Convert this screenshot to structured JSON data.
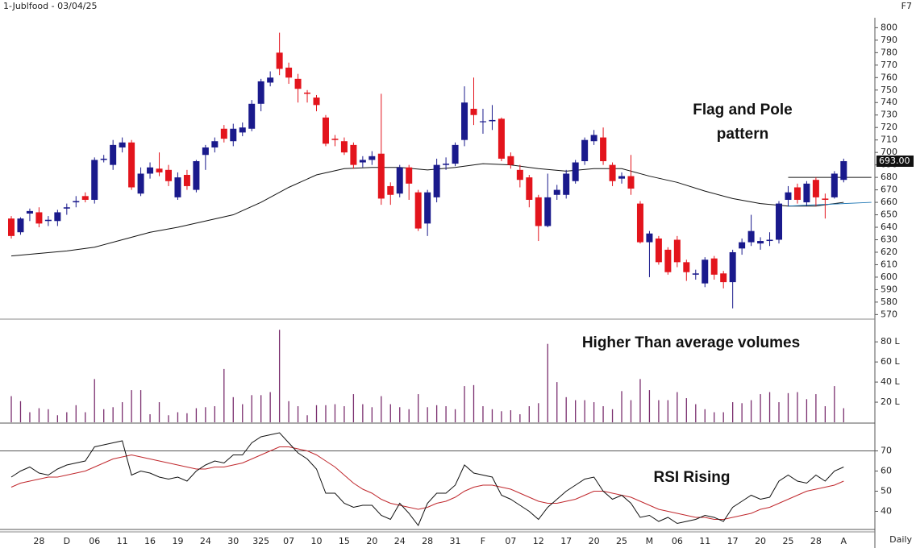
{
  "chart_data": [
    {
      "type": "candlestick",
      "title": "1-Jublfood - 03/04/25",
      "corner_label": "F7",
      "annotation": [
        "Flag and Pole",
        "pattern"
      ],
      "up_color": "#1a1a8c",
      "down_color": "#e3141c",
      "open": [
        647,
        636,
        651,
        652,
        645,
        645,
        655,
        660,
        665,
        662,
        694,
        690,
        704,
        708,
        667,
        683,
        687,
        686,
        664,
        682,
        670,
        698,
        704,
        719,
        709,
        716,
        719,
        739,
        756,
        780,
        768,
        759,
        748,
        744,
        728,
        711,
        709,
        706,
        692,
        694,
        699,
        673,
        667,
        688,
        668,
        643,
        664,
        690,
        691,
        710,
        735,
        725,
        725,
        727,
        697,
        686,
        680,
        664,
        641,
        666,
        666,
        677,
        693,
        709,
        712,
        690,
        679,
        681,
        659,
        628,
        631,
        622,
        630,
        612,
        602,
        595,
        615,
        603,
        596,
        623,
        628,
        627,
        629,
        630,
        662,
        672,
        660,
        678,
        663,
        664,
        678
      ],
      "high": [
        649,
        648,
        655,
        656,
        649,
        654,
        659,
        665,
        668,
        696,
        698,
        710,
        712,
        710,
        688,
        692,
        700,
        690,
        684,
        686,
        694,
        706,
        712,
        722,
        723,
        724,
        742,
        759,
        765,
        796,
        772,
        763,
        750,
        746,
        730,
        714,
        712,
        708,
        697,
        701,
        747,
        676,
        690,
        690,
        670,
        670,
        695,
        696,
        708,
        753,
        760,
        735,
        738,
        728,
        700,
        690,
        682,
        666,
        683,
        674,
        686,
        694,
        712,
        718,
        720,
        692,
        684,
        698,
        661,
        637,
        633,
        624,
        633,
        614,
        606,
        616,
        617,
        605,
        622,
        631,
        650,
        632,
        636,
        661,
        673,
        675,
        677,
        680,
        667,
        685,
        695
      ],
      "low": [
        631,
        634,
        645,
        640,
        641,
        641,
        650,
        656,
        660,
        659,
        692,
        686,
        700,
        670,
        665,
        679,
        681,
        673,
        662,
        670,
        668,
        686,
        700,
        708,
        705,
        713,
        717,
        733,
        753,
        762,
        755,
        740,
        740,
        733,
        705,
        705,
        698,
        687,
        688,
        690,
        658,
        658,
        664,
        662,
        637,
        633,
        660,
        686,
        689,
        705,
        722,
        715,
        718,
        693,
        687,
        672,
        656,
        629,
        640,
        662,
        663,
        675,
        690,
        706,
        690,
        673,
        675,
        666,
        627,
        600,
        610,
        602,
        608,
        597,
        598,
        592,
        598,
        591,
        575,
        618,
        625,
        622,
        625,
        627,
        657,
        659,
        657,
        657,
        647,
        663,
        676
      ],
      "close": [
        633,
        647,
        653,
        643,
        646,
        652,
        656,
        661,
        662,
        694,
        695,
        706,
        708,
        672,
        683,
        688,
        684,
        677,
        680,
        673,
        693,
        704,
        709,
        711,
        719,
        720,
        739,
        757,
        760,
        767,
        760,
        751,
        747,
        738,
        707,
        710,
        700,
        690,
        694,
        697,
        663,
        666,
        688,
        675,
        639,
        668,
        690,
        691,
        706,
        740,
        730,
        725,
        726,
        695,
        690,
        678,
        662,
        641,
        664,
        670,
        683,
        692,
        710,
        714,
        693,
        677,
        681,
        671,
        628,
        635,
        612,
        604,
        612,
        604,
        603,
        614,
        602,
        596,
        620,
        628,
        637,
        629,
        630,
        659,
        668,
        662,
        675,
        664,
        662,
        683,
        693
      ],
      "categories": [
        null,
        null,
        null,
        "28",
        null,
        null,
        "D",
        null,
        null,
        "06",
        null,
        null,
        "11",
        null,
        null,
        "16",
        null,
        null,
        "19",
        null,
        null,
        "24",
        null,
        null,
        "30",
        null,
        null,
        "325",
        null,
        null,
        "07",
        null,
        null,
        "10",
        null,
        null,
        "15",
        null,
        null,
        "20",
        null,
        null,
        "24",
        null,
        null,
        "28",
        null,
        null,
        "31",
        null,
        null,
        "F",
        null,
        null,
        "07",
        null,
        null,
        "12",
        null,
        null,
        "17",
        null,
        null,
        "20",
        null,
        null,
        "25",
        null,
        null,
        "M",
        null,
        null,
        "06",
        null,
        null,
        "11",
        null,
        null,
        "17",
        null,
        null,
        "20",
        null,
        null,
        "25",
        null,
        null,
        "28",
        null,
        null,
        "A"
      ],
      "moving_average": {
        "color": "#111111",
        "x": [
          0,
          3,
          6,
          9,
          12,
          15,
          18,
          21,
          24,
          27,
          30,
          33,
          36,
          39,
          42,
          45,
          48,
          51,
          54,
          57,
          60,
          63,
          66,
          69,
          72,
          75,
          78,
          81,
          84,
          87,
          90
        ],
        "values": [
          617,
          619,
          621,
          624,
          630,
          636,
          640,
          645,
          650,
          660,
          672,
          682,
          687,
          688,
          688,
          686,
          688,
          691,
          690,
          687,
          685,
          687,
          687,
          681,
          676,
          669,
          663,
          659,
          657,
          657,
          660
        ]
      },
      "trendlines": [
        {
          "color": "#111111",
          "x": [
            84,
            93
          ],
          "values": [
            680,
            680
          ]
        },
        {
          "color": "#1f77b4",
          "x": [
            84,
            93
          ],
          "values": [
            657,
            660
          ]
        }
      ],
      "last_label": {
        "value": 693,
        "label": "693.00"
      },
      "ylim": [
        567,
        808
      ],
      "yticks": [
        570,
        580,
        590,
        600,
        610,
        620,
        630,
        640,
        650,
        660,
        670,
        680,
        690,
        700,
        710,
        720,
        730,
        740,
        750,
        760,
        770,
        780,
        790,
        800
      ]
    },
    {
      "type": "bar",
      "annotation": "Higher Than average volumes",
      "color": "#7a2e6e",
      "values": [
        26,
        21,
        10,
        14,
        13,
        7,
        10,
        17,
        10,
        43,
        13,
        15,
        20,
        32,
        32,
        8,
        20,
        7,
        10,
        9,
        14,
        15,
        16,
        53,
        25,
        18,
        27,
        27,
        30,
        92,
        21,
        16,
        7,
        17,
        17,
        18,
        16,
        28,
        18,
        15,
        26,
        18,
        15,
        13,
        28,
        15,
        17,
        16,
        13,
        36,
        37,
        16,
        13,
        11,
        12,
        8,
        16,
        19,
        78,
        40,
        25,
        22,
        22,
        20,
        16,
        13,
        31,
        22,
        43,
        32,
        22,
        22,
        30,
        24,
        18,
        13,
        10,
        10,
        20,
        19,
        22,
        28,
        30,
        20,
        29,
        30,
        23,
        28,
        16,
        36,
        14
      ],
      "ylim": [
        0,
        101
      ],
      "yticks": [
        {
          "value": 20,
          "label": "20 L"
        },
        {
          "value": 40,
          "label": "40 L"
        },
        {
          "value": 60,
          "label": "60 L"
        },
        {
          "value": 80,
          "label": "80 L"
        }
      ]
    },
    {
      "type": "line",
      "annotation": "RSI Rising",
      "timeframe": "Daily",
      "series": [
        {
          "color": "#111111",
          "values": [
            57,
            60,
            62,
            59,
            58,
            61,
            63,
            64,
            65,
            72,
            73,
            74,
            75,
            58,
            60,
            59,
            57,
            56,
            57,
            55,
            60,
            63,
            65,
            64,
            68,
            68,
            74,
            77,
            78,
            79,
            74,
            69,
            66,
            61,
            49,
            49,
            44,
            42,
            43,
            43,
            38,
            36,
            44,
            39,
            33,
            44,
            49,
            49,
            53,
            63,
            59,
            58,
            57,
            48,
            46,
            43,
            40,
            36,
            42,
            46,
            50,
            53,
            56,
            57,
            50,
            46,
            48,
            44,
            37,
            38,
            35,
            37,
            34,
            35,
            36,
            38,
            37,
            35,
            42,
            45,
            48,
            46,
            47,
            55,
            58,
            55,
            54,
            58,
            55,
            60,
            62
          ]
        },
        {
          "color": "#c0282d",
          "values": [
            52,
            54,
            55,
            56,
            57,
            57,
            58,
            59,
            60,
            62,
            64,
            66,
            67,
            68,
            67,
            66,
            65,
            64,
            63,
            62,
            61,
            61,
            62,
            62,
            63,
            64,
            66,
            68,
            70,
            72,
            72,
            71,
            70,
            68,
            65,
            62,
            58,
            54,
            51,
            49,
            46,
            44,
            43,
            42,
            41,
            42,
            44,
            45,
            47,
            50,
            52,
            53,
            53,
            52,
            51,
            49,
            47,
            45,
            44,
            44,
            45,
            46,
            48,
            50,
            50,
            49,
            48,
            47,
            45,
            43,
            41,
            40,
            39,
            38,
            37,
            37,
            36,
            36,
            37,
            38,
            39,
            41,
            42,
            44,
            46,
            48,
            50,
            51,
            52,
            53,
            55
          ]
        }
      ],
      "levels": [
        70
      ],
      "ylim": [
        31,
        79
      ],
      "yticks": [
        40,
        50,
        60,
        70
      ]
    }
  ]
}
